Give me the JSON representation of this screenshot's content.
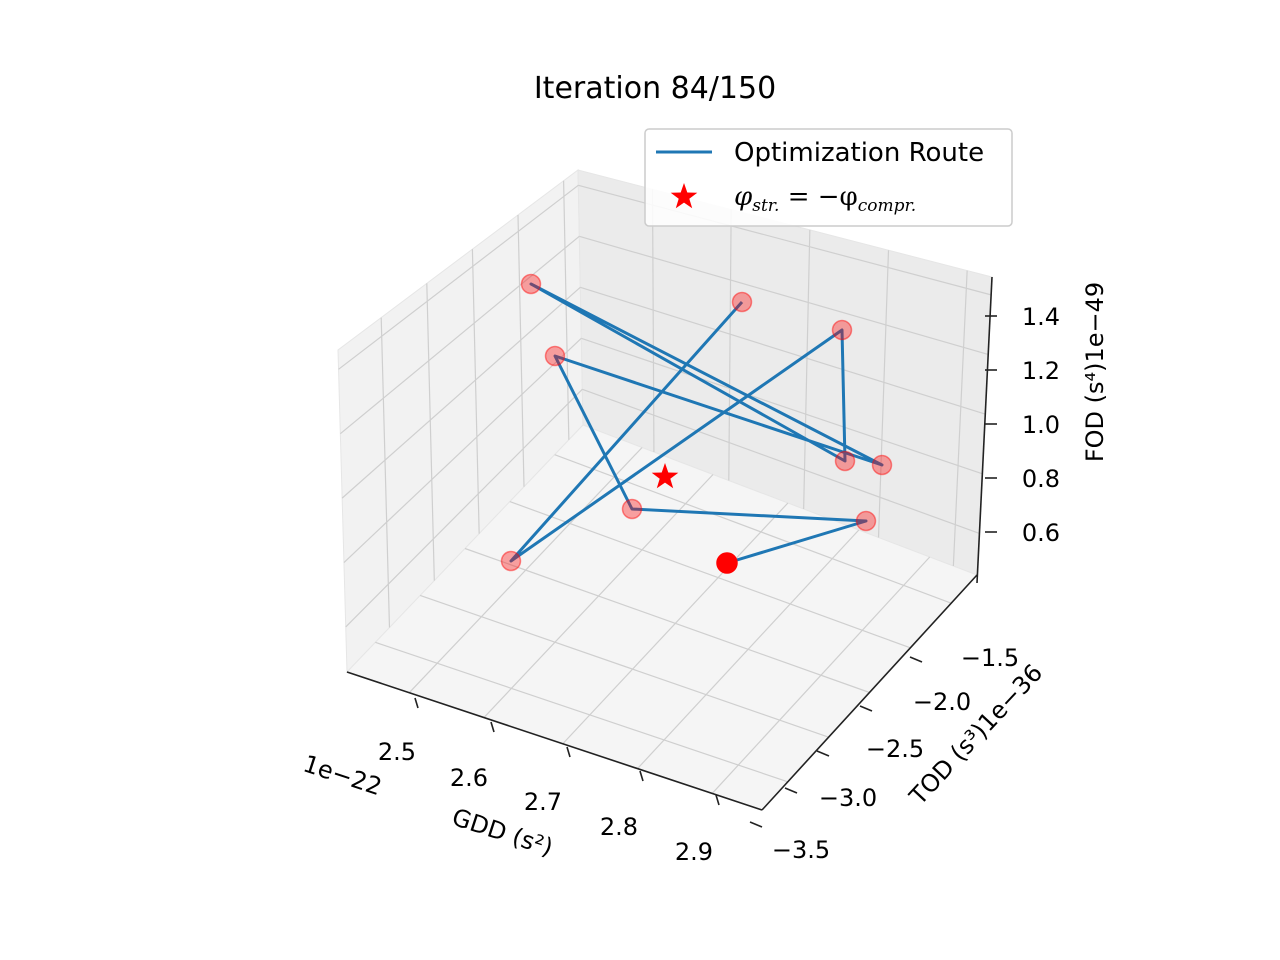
{
  "chart_data": {
    "type": "scatter",
    "title": "Iteration 84/150",
    "xlabel": "GDD (s²)",
    "ylabel": "TOD (s³)1e−36",
    "zlabel": "FOD (s⁴)1e−49",
    "x_offset_text": "1e−22",
    "x_ticks": [
      "2.5",
      "2.6",
      "2.7",
      "2.8",
      "2.9"
    ],
    "y_ticks": [
      "−1.5",
      "−2.0",
      "−2.5",
      "−3.0",
      "−3.5"
    ],
    "z_ticks": [
      "1.4",
      "1.2",
      "1.0",
      "0.8",
      "0.6"
    ],
    "grid": true,
    "legend": {
      "placement": "top-right",
      "entries": [
        {
          "label": "Optimization Route",
          "kind": "line",
          "color": "#1f77b4"
        },
        {
          "label_main": "φ",
          "label_sub1": "str.",
          "label_eq": " = −φ",
          "label_sub2": "compr.",
          "kind": "star",
          "color": "#ff0000"
        }
      ]
    },
    "series": [
      {
        "kind": "route",
        "color": "#1f77b4",
        "marker_color": "#ff0000",
        "points": [
          {
            "gdd": 2.62,
            "tod": -2.0,
            "fod": 1.4,
            "current": false
          },
          {
            "gdd": 2.5,
            "tod": -2.9,
            "fod": 0.8,
            "current": false
          },
          {
            "gdd": 2.63,
            "tod": -1.6,
            "fod": 1.1,
            "current": false
          },
          {
            "gdd": 2.71,
            "tod": -1.3,
            "fod": 0.65,
            "current": false
          },
          {
            "gdd": 2.44,
            "tod": -2.7,
            "fod": 1.45,
            "current": false
          },
          {
            "gdd": 2.6,
            "tod": -3.1,
            "fod": 1.55,
            "current": false
          },
          {
            "gdd": 2.76,
            "tod": -2.5,
            "fod": 1.0,
            "current": false
          },
          {
            "gdd": 2.62,
            "tod": -3.0,
            "fod": 1.1,
            "current": false
          },
          {
            "gdd": 2.85,
            "tod": -3.1,
            "fod": 0.6,
            "current": false
          },
          {
            "gdd": 2.82,
            "tod": -2.7,
            "fod": 0.65,
            "current": true
          }
        ]
      },
      {
        "kind": "target",
        "label": "φstr. = −φcompr.",
        "color": "#ff0000",
        "point": {
          "gdd": 2.72,
          "tod": -2.6,
          "fod": 1.0
        }
      }
    ]
  }
}
